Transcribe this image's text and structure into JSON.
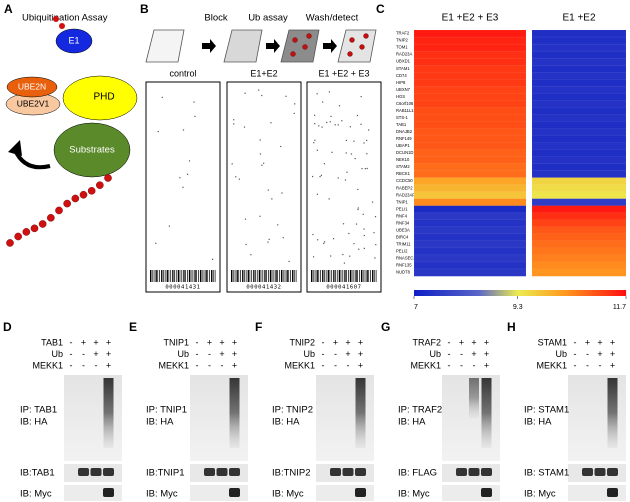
{
  "panelA": {
    "letter": "A",
    "title": "Ubiquitination Assay",
    "e1": "E1",
    "ube2n": "UBE2N",
    "ube2v1": "UBE2V1",
    "phd": "PHD",
    "substrates": "Substrates"
  },
  "panelB": {
    "letter": "B",
    "steps": [
      "Block",
      "Ub assay",
      "Wash/detect"
    ],
    "arrays": [
      {
        "label": "control",
        "barcode": "000041431"
      },
      {
        "label": "E1+E2",
        "barcode": "000041432"
      },
      {
        "label": "E1 +E2 + E3",
        "barcode": "000041607"
      }
    ]
  },
  "panelC": {
    "letter": "C",
    "columns": [
      "E1 +E2 + E3",
      "E1 +E2"
    ],
    "genes": [
      "TRAF2",
      "TNIP2",
      "TOM1",
      "RAD23A",
      "UBXD1",
      "STAM1",
      "CD74",
      "HIP8",
      "UBXN7",
      "HGS",
      "C6orf106",
      "RAB11L1",
      "STS-1",
      "TAB1",
      "DNAJB2",
      "RNF149",
      "UBAP1",
      "DCUN1D1",
      "NEK10",
      "STAM2",
      "RBCK1",
      "CCDC50",
      "RABEP2",
      "RAD23AP1",
      "TNIP1",
      "PELI1",
      "RNF4",
      "RNF34",
      "UBE3A",
      "BIRC4",
      "TRIM11",
      "PELI2",
      "RNASEC2",
      "RNF135",
      "NUDT8"
    ],
    "values": [
      [
        11.6,
        7.3
      ],
      [
        11.5,
        7.3
      ],
      [
        11.5,
        7.4
      ],
      [
        11.4,
        7.3
      ],
      [
        11.4,
        7.4
      ],
      [
        11.3,
        7.3
      ],
      [
        11.3,
        7.4
      ],
      [
        11.3,
        7.3
      ],
      [
        11.2,
        7.4
      ],
      [
        11.2,
        7.3
      ],
      [
        11.2,
        7.4
      ],
      [
        11.1,
        7.3
      ],
      [
        11.1,
        7.4
      ],
      [
        11.1,
        7.3
      ],
      [
        11.0,
        7.4
      ],
      [
        11.0,
        7.3
      ],
      [
        11.0,
        7.4
      ],
      [
        10.9,
        7.3
      ],
      [
        10.9,
        7.4
      ],
      [
        10.8,
        7.3
      ],
      [
        10.8,
        7.4
      ],
      [
        10.2,
        9.6
      ],
      [
        10.0,
        9.5
      ],
      [
        9.8,
        9.4
      ],
      [
        10.5,
        7.6
      ],
      [
        7.2,
        11.6
      ],
      [
        7.5,
        11.4
      ],
      [
        7.4,
        11.2
      ],
      [
        7.5,
        11.0
      ],
      [
        7.4,
        10.9
      ],
      [
        7.5,
        10.8
      ],
      [
        7.4,
        10.7
      ],
      [
        7.5,
        10.6
      ],
      [
        7.4,
        10.5
      ],
      [
        7.5,
        10.4
      ]
    ],
    "scale_ticks": [
      7,
      9.3,
      11.7
    ]
  },
  "blots": [
    {
      "letter": "D",
      "rows": [
        {
          "label": "TAB1",
          "signs": [
            "-",
            "+",
            "+",
            "+"
          ]
        },
        {
          "label": "Ub",
          "signs": [
            "-",
            "-",
            "+",
            "+"
          ]
        },
        {
          "label": "MEKK1",
          "signs": [
            "-",
            "-",
            "-",
            "+"
          ]
        }
      ],
      "ip": "IP: TAB1",
      "ib": "IB: HA",
      "loading": "IB:TAB1",
      "myc": "IB: Myc"
    },
    {
      "letter": "E",
      "rows": [
        {
          "label": "TNIP1",
          "signs": [
            "-",
            "+",
            "+",
            "+"
          ]
        },
        {
          "label": "Ub",
          "signs": [
            "-",
            "-",
            "+",
            "+"
          ]
        },
        {
          "label": "MEKK1",
          "signs": [
            "-",
            "-",
            "-",
            "+"
          ]
        }
      ],
      "ip": "IP: TNIP1",
      "ib": "IB: HA",
      "loading": "IB:TNIP1",
      "myc": "IB: Myc"
    },
    {
      "letter": "F",
      "rows": [
        {
          "label": "TNIP2",
          "signs": [
            "-",
            "+",
            "+",
            "+"
          ]
        },
        {
          "label": "Ub",
          "signs": [
            "-",
            "-",
            "+",
            "+"
          ]
        },
        {
          "label": "MEKK1",
          "signs": [
            "-",
            "-",
            "-",
            "+"
          ]
        }
      ],
      "ip": "IP: TNIP2",
      "ib": "IB: HA",
      "loading": "IB:TNIP2",
      "myc": "IB: Myc"
    },
    {
      "letter": "G",
      "rows": [
        {
          "label": "TRAF2",
          "signs": [
            "-",
            "+",
            "+",
            "+"
          ]
        },
        {
          "label": "Ub",
          "signs": [
            "-",
            "-",
            "+",
            "+"
          ]
        },
        {
          "label": "MEKK1",
          "signs": [
            "-",
            "-",
            "-",
            "+"
          ]
        }
      ],
      "ip": "IP: TRAF2",
      "ib": "IB: HA",
      "loading": "IB: FLAG",
      "myc": "IB: Myc"
    },
    {
      "letter": "H",
      "rows": [
        {
          "label": "STAM1",
          "signs": [
            "-",
            "+",
            "+",
            "+"
          ]
        },
        {
          "label": "Ub",
          "signs": [
            "-",
            "-",
            "+",
            "+"
          ]
        },
        {
          "label": "MEKK1",
          "signs": [
            "-",
            "-",
            "-",
            "+"
          ]
        }
      ],
      "ip": "IP: STAM1",
      "ib": "IB: HA",
      "loading": "IB: STAM1",
      "myc": "IB: Myc"
    }
  ]
}
